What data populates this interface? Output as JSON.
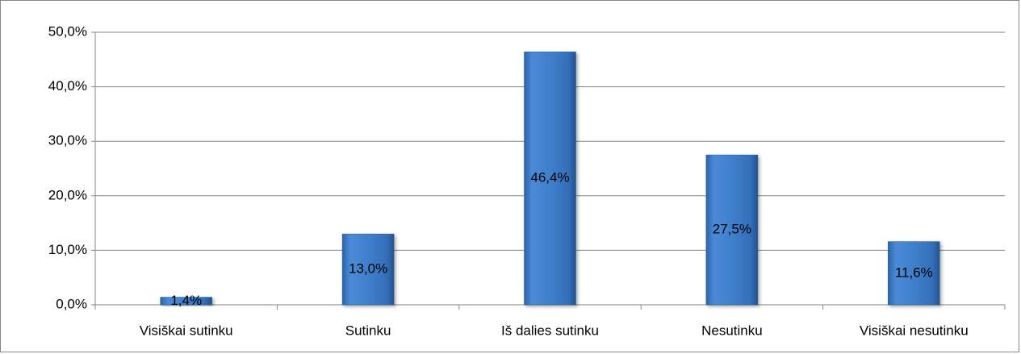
{
  "chart_data": {
    "type": "bar",
    "categories": [
      "Visiškai sutinku",
      "Sutinku",
      "Iš dalies sutinku",
      "Nesutinku",
      "Visiškai nesutinku"
    ],
    "values": [
      1.4,
      13.0,
      46.4,
      27.5,
      11.6
    ],
    "value_labels": [
      "1,4%",
      "13,0%",
      "46,4%",
      "27,5%",
      "11,6%"
    ],
    "color": "#3f7fcc",
    "ylim": [
      0,
      50
    ],
    "yticks": [
      {
        "value": 0,
        "label": "0,0%"
      },
      {
        "value": 10,
        "label": "10,0%"
      },
      {
        "value": 20,
        "label": "20,0%"
      },
      {
        "value": 30,
        "label": "30,0%"
      },
      {
        "value": 40,
        "label": "40,0%"
      },
      {
        "value": 50,
        "label": "50,0%"
      }
    ],
    "grid": true
  }
}
